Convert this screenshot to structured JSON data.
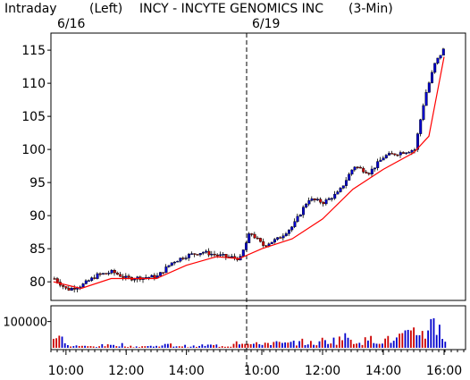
{
  "header": {
    "period": "Intraday",
    "side": "(Left)",
    "symbol_title": "INCY - INCYTE GENOMICS INC",
    "interval": "(3-Min)"
  },
  "chart_data": [
    {
      "type": "candlestick",
      "title": "INCY - INCYTE GENOMICS INC",
      "session_labels": [
        "6/16",
        "6/19"
      ],
      "x_tick_labels": [
        "10:00",
        "12:00",
        "14:00",
        "10:00",
        "12:00",
        "14:00",
        "16:00"
      ],
      "y_tick_labels": [
        "80",
        "85",
        "90",
        "95",
        "100",
        "105",
        "110",
        "115"
      ],
      "ylim": [
        78,
        116.5
      ],
      "colors": {
        "up": "#0000cc",
        "down": "#cc0000",
        "moving_average": "#ff0000",
        "session_divider": "#000000"
      },
      "series": [
        {
          "name": "",
          "type": "line-estimate",
          "close_points": [
            [
              "6/16 09:35",
              80.5
            ],
            [
              "6/16 10:00",
              78.8
            ],
            [
              "6/16 10:30",
              79.5
            ],
            [
              "6/16 11:00",
              81.0
            ],
            [
              "6/16 11:30",
              81.5
            ],
            [
              "6/16 12:00",
              80.5
            ],
            [
              "6/16 13:00",
              80.8
            ],
            [
              "6/16 13:30",
              83.0
            ],
            [
              "6/16 14:00",
              84.0
            ],
            [
              "6/16 14:30",
              84.5
            ],
            [
              "6/16 15:00",
              84.0
            ],
            [
              "6/16 15:45",
              83.5
            ],
            [
              "6/19 09:35",
              87.5
            ],
            [
              "6/19 10:00",
              85.5
            ],
            [
              "6/19 10:30",
              86.5
            ],
            [
              "6/19 11:00",
              88.5
            ],
            [
              "6/19 11:30",
              92.5
            ],
            [
              "6/19 12:00",
              92.0
            ],
            [
              "6/19 12:30",
              93.5
            ],
            [
              "6/19 13:00",
              97.5
            ],
            [
              "6/19 13:30",
              96.5
            ],
            [
              "6/19 14:00",
              99.0
            ],
            [
              "6/19 14:30",
              99.5
            ],
            [
              "6/19 15:00",
              100.0
            ],
            [
              "6/19 15:20",
              108.0
            ],
            [
              "6/19 15:40",
              113.0
            ],
            [
              "6/19 16:00",
              115.5
            ]
          ]
        },
        {
          "name": "",
          "type": "moving-average",
          "points": [
            [
              "6/16 09:35",
              80.0
            ],
            [
              "6/16 10:30",
              79.0
            ],
            [
              "6/16 11:30",
              80.5
            ],
            [
              "6/16 13:00",
              80.5
            ],
            [
              "6/16 14:00",
              82.5
            ],
            [
              "6/16 15:00",
              83.8
            ],
            [
              "6/16 15:45",
              83.5
            ],
            [
              "6/19 10:00",
              85.0
            ],
            [
              "6/19 11:00",
              86.5
            ],
            [
              "6/19 12:00",
              89.5
            ],
            [
              "6/19 13:00",
              94.0
            ],
            [
              "6/19 14:00",
              97.0
            ],
            [
              "6/19 15:00",
              99.5
            ],
            [
              "6/19 15:30",
              102.0
            ],
            [
              "6/19 16:00",
              114.0
            ]
          ]
        }
      ]
    },
    {
      "type": "bar",
      "title": "",
      "y_tick_labels": [
        "100000"
      ],
      "ylim": [
        0,
        160000
      ],
      "colors": {
        "up": "#0000cc",
        "down": "#cc0000"
      },
      "values_estimated": [
        55000,
        12000,
        9000,
        14000,
        20000,
        8000,
        10000,
        18000,
        12000,
        9000,
        15000,
        11000,
        40000,
        22000,
        30000,
        25000,
        35000,
        28000,
        45000,
        60000,
        42000,
        50000,
        48000,
        70000,
        95000,
        140000,
        60000
      ]
    }
  ]
}
